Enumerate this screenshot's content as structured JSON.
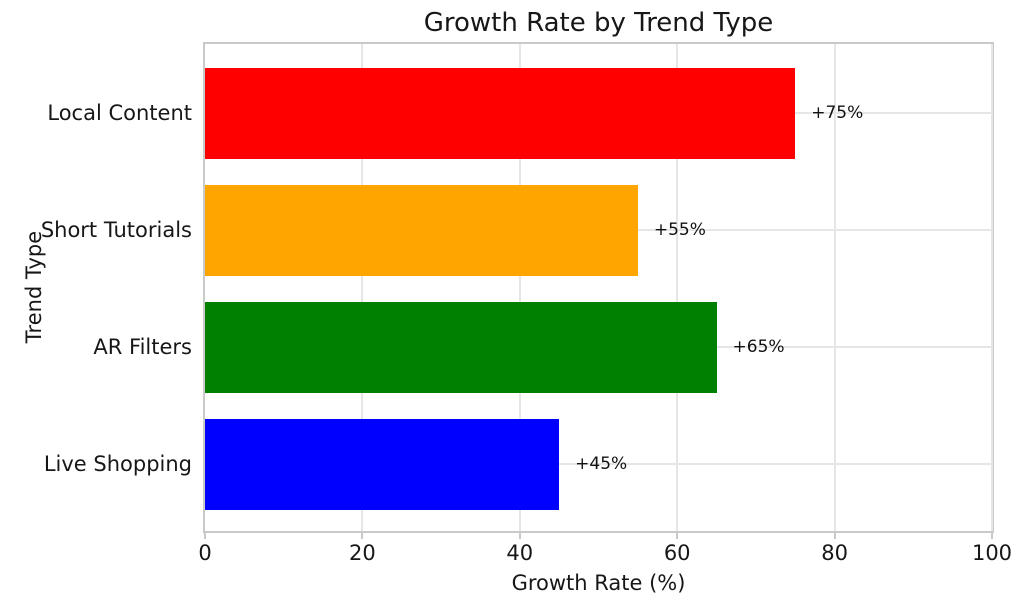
{
  "chart_data": {
    "type": "bar",
    "orientation": "horizontal",
    "title": "Growth Rate by Trend Type",
    "xlabel": "Growth Rate (%)",
    "ylabel": "Trend Type",
    "categories": [
      "Local Content",
      "Short Tutorials",
      "AR Filters",
      "Live Shopping"
    ],
    "series": [
      {
        "name": "Growth Rate",
        "values": [
          75,
          55,
          65,
          45
        ]
      }
    ],
    "bar_labels": [
      "+75%",
      "+55%",
      "+65%",
      "+45%"
    ],
    "bar_colors": [
      "#ff0000",
      "#ffa500",
      "#008000",
      "#0000ff"
    ],
    "xlim": [
      0,
      100
    ],
    "xticks": [
      0,
      20,
      40,
      60,
      80,
      100
    ],
    "grid": true,
    "legend": "none",
    "colors": {
      "grid": "#e6e6e6",
      "spine": "#c9c9c9",
      "text": "#171717",
      "background": "#ffffff"
    }
  }
}
